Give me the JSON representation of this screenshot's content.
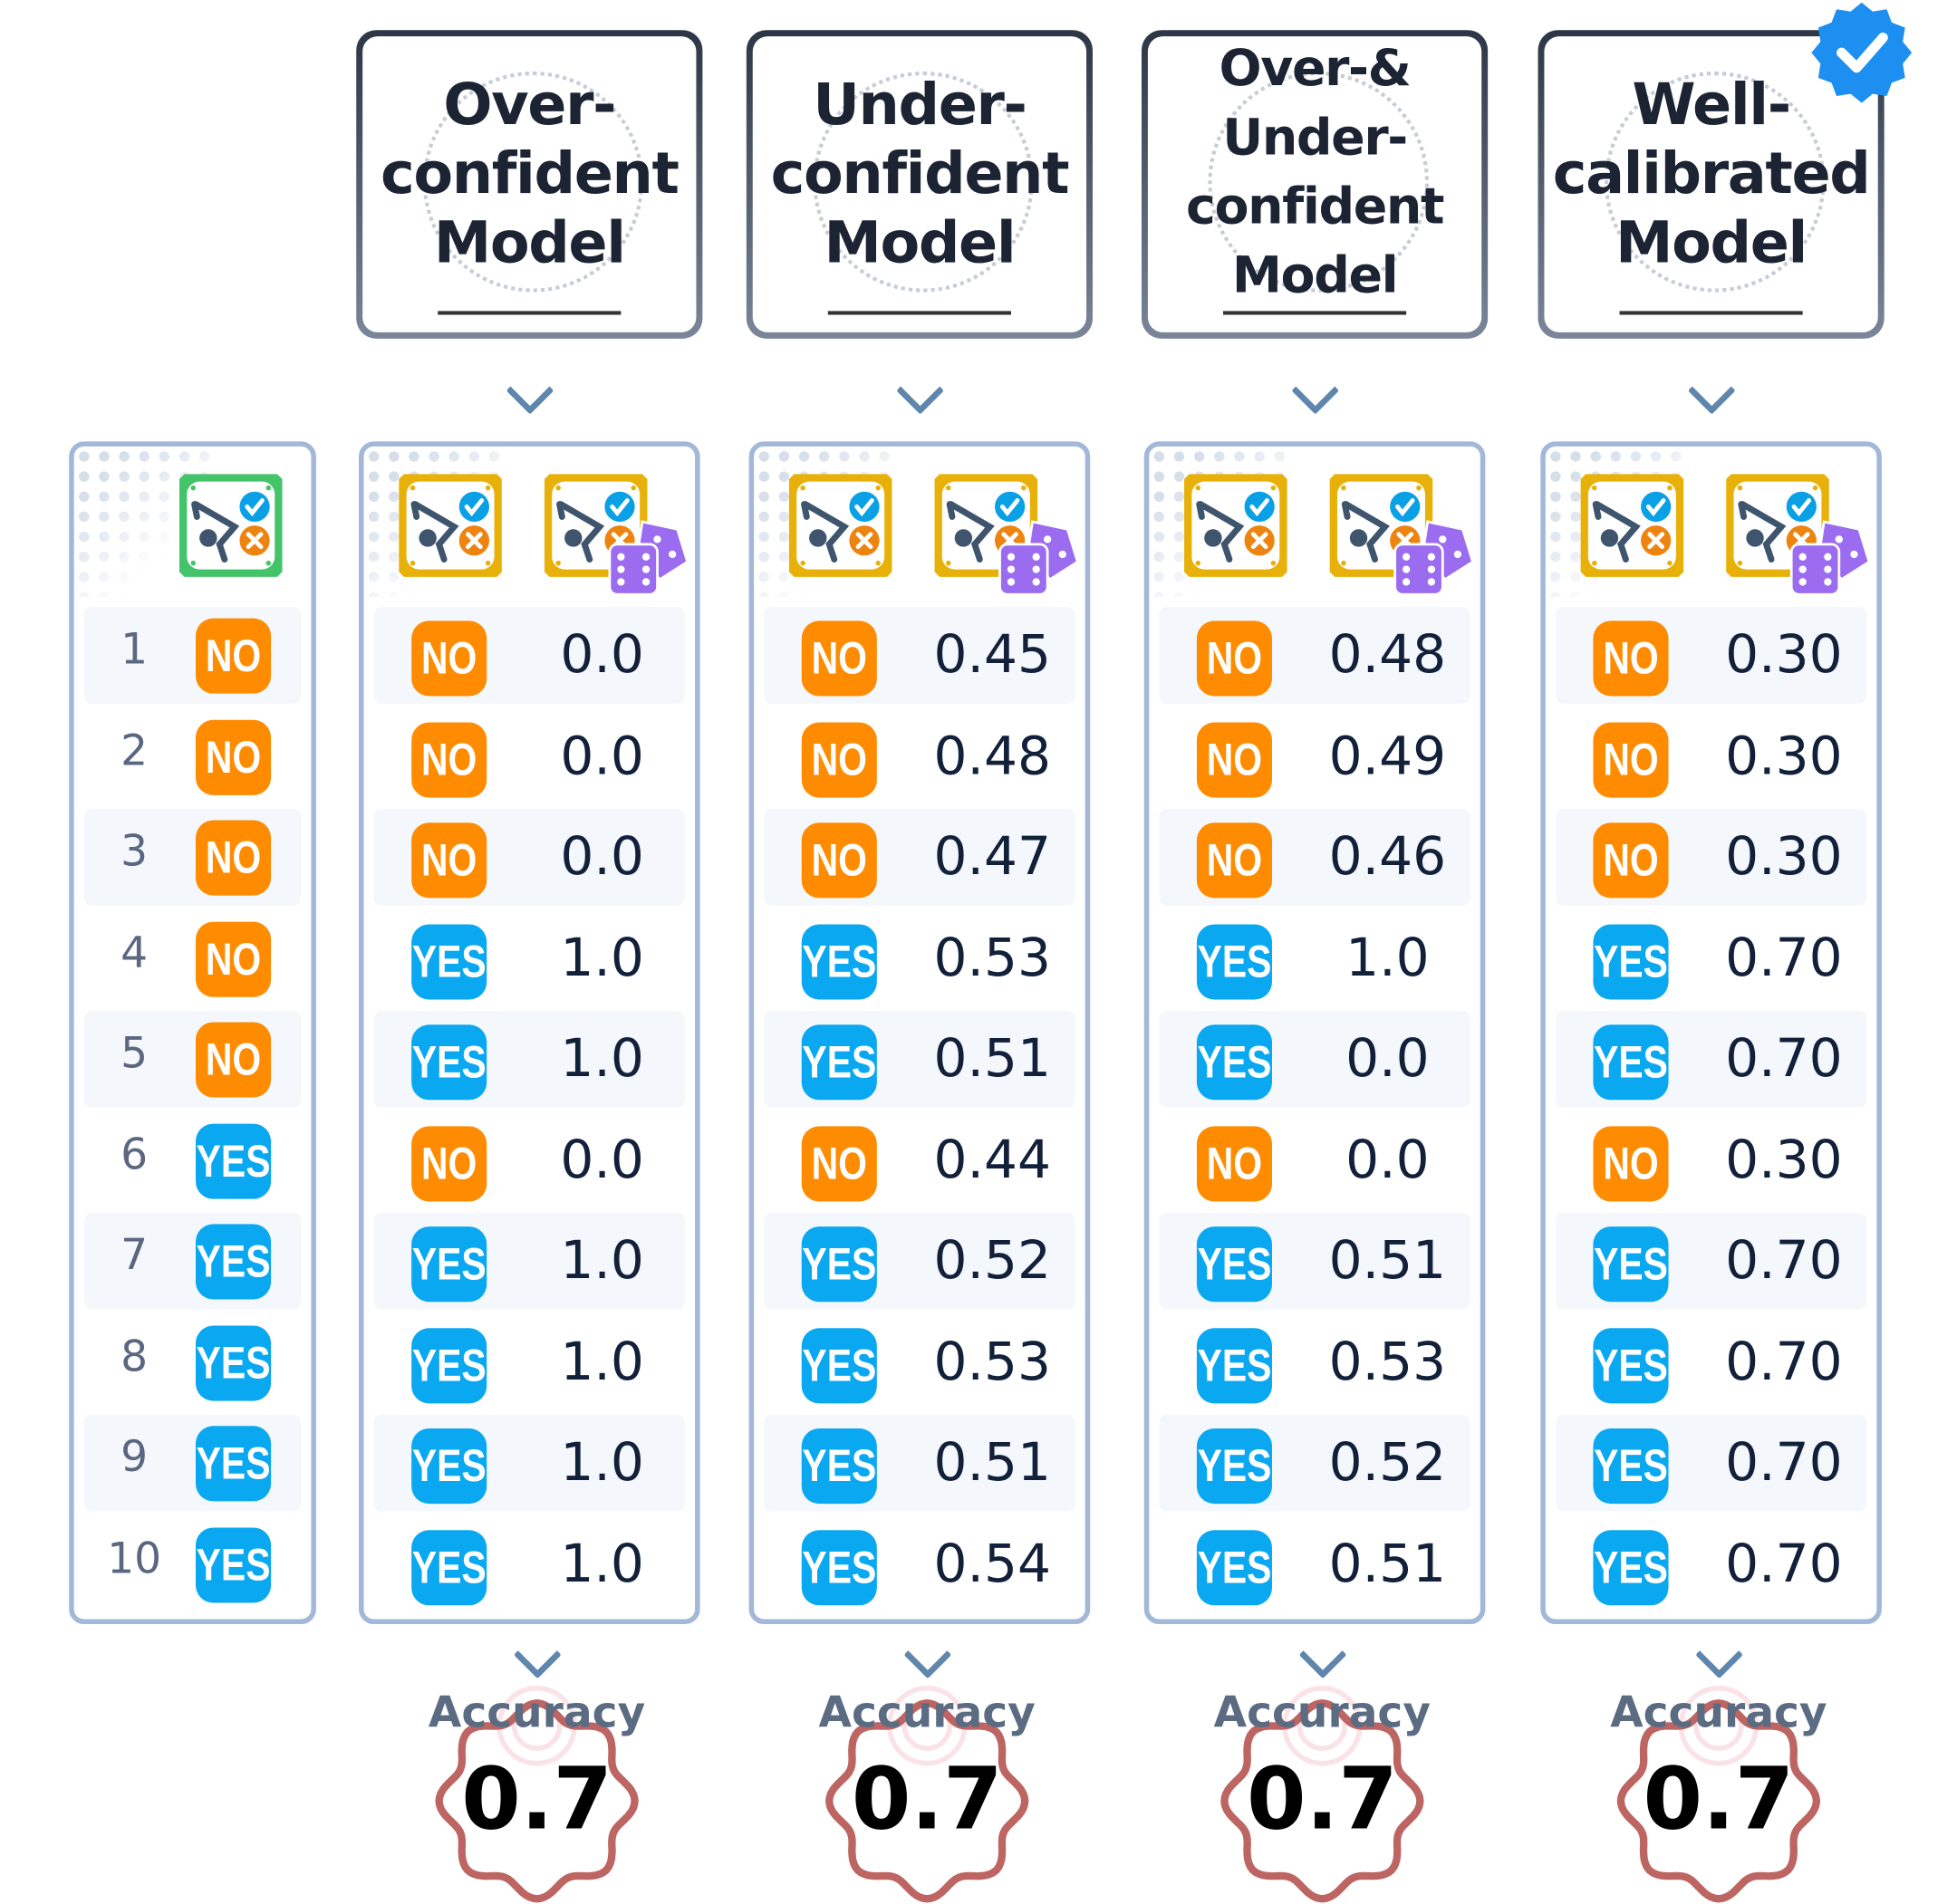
{
  "colors": {
    "no": "#ff8c00",
    "yes": "#0aa8f0",
    "panel_border": "#a3b8d8",
    "badge": "#bc6562",
    "ground_truth_frame": "#44c46a",
    "model_frame": "#e8b10a",
    "dice": "#9b6cf0"
  },
  "ground_truth": {
    "icon": "target-check-x-icon",
    "rows": [
      {
        "n": "1",
        "label": "NO"
      },
      {
        "n": "2",
        "label": "NO"
      },
      {
        "n": "3",
        "label": "NO"
      },
      {
        "n": "4",
        "label": "NO"
      },
      {
        "n": "5",
        "label": "NO"
      },
      {
        "n": "6",
        "label": "YES"
      },
      {
        "n": "7",
        "label": "YES"
      },
      {
        "n": "8",
        "label": "YES"
      },
      {
        "n": "9",
        "label": "YES"
      },
      {
        "n": "10",
        "label": "YES"
      }
    ]
  },
  "models": [
    {
      "title": "Over-\nconfident\nModel",
      "verified": false,
      "preds": [
        "NO",
        "NO",
        "NO",
        "YES",
        "YES",
        "NO",
        "YES",
        "YES",
        "YES",
        "YES"
      ],
      "conf": [
        "0.0",
        "0.0",
        "0.0",
        "1.0",
        "1.0",
        "0.0",
        "1.0",
        "1.0",
        "1.0",
        "1.0"
      ],
      "accuracy_label": "Accuracy",
      "accuracy": "0.7"
    },
    {
      "title": "Under-\nconfident\nModel",
      "verified": false,
      "preds": [
        "NO",
        "NO",
        "NO",
        "YES",
        "YES",
        "NO",
        "YES",
        "YES",
        "YES",
        "YES"
      ],
      "conf": [
        "0.45",
        "0.48",
        "0.47",
        "0.53",
        "0.51",
        "0.44",
        "0.52",
        "0.53",
        "0.51",
        "0.54"
      ],
      "accuracy_label": "Accuracy",
      "accuracy": "0.7"
    },
    {
      "title": "Over-& Under-\nconfident\nModel",
      "verified": false,
      "preds": [
        "NO",
        "NO",
        "NO",
        "YES",
        "YES",
        "NO",
        "YES",
        "YES",
        "YES",
        "YES"
      ],
      "conf": [
        "0.48",
        "0.49",
        "0.46",
        "1.0",
        "0.0",
        "0.0",
        "0.51",
        "0.53",
        "0.52",
        "0.51"
      ],
      "accuracy_label": "Accuracy",
      "accuracy": "0.7"
    },
    {
      "title": "Well-\ncalibrated\nModel",
      "verified": true,
      "preds": [
        "NO",
        "NO",
        "NO",
        "YES",
        "YES",
        "NO",
        "YES",
        "YES",
        "YES",
        "YES"
      ],
      "conf": [
        "0.30",
        "0.30",
        "0.30",
        "0.70",
        "0.70",
        "0.30",
        "0.70",
        "0.70",
        "0.70",
        "0.70"
      ],
      "accuracy_label": "Accuracy",
      "accuracy": "0.7"
    }
  ]
}
